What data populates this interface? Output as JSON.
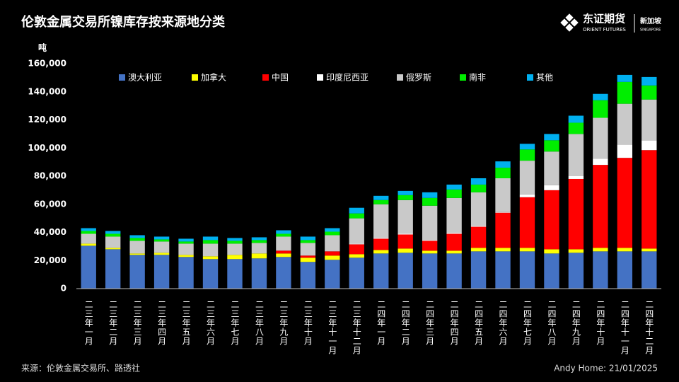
{
  "logo": {
    "name": "东证期货",
    "name_en": "ORIENT FUTURES",
    "region": "新加坡",
    "region_en": "SINGAPORE"
  },
  "chart_data": {
    "type": "stacked_bar",
    "title": "伦敦金属交易所镍库存按来源地分类",
    "y_label": "吨",
    "source": "来源：伦敦金属交易所、路透社",
    "credit": "Andy Home: 21/01/2025",
    "categories": [
      "二三年一月",
      "二三年二月",
      "二三年三月",
      "二三年四月",
      "二三年五月",
      "二三年六月",
      "二三年七月",
      "二三年八月",
      "二三年九月",
      "二三年十月",
      "二三年十一月",
      "二三年十二月",
      "二四年一月",
      "二四年二月",
      "二四年三月",
      "二四年四月",
      "二四年五月",
      "二四年六月",
      "二四年七月",
      "二四年八月",
      "二四年九月",
      "二四年十月",
      "二四年十一月",
      "二四年十二月"
    ],
    "series": [
      {
        "name": "澳大利亚",
        "color": "#4472c4",
        "values": [
          30500,
          28000,
          24000,
          24000,
          22500,
          21000,
          21000,
          21500,
          22500,
          19000,
          20500,
          22000,
          25000,
          25500,
          25000,
          25000,
          26500,
          26500,
          26500,
          25000,
          25500,
          26500,
          26500,
          26500
        ]
      },
      {
        "name": "加拿大",
        "color": "#ffff00",
        "values": [
          1500,
          1000,
          1000,
          1500,
          1500,
          2000,
          3000,
          3500,
          2500,
          3000,
          3000,
          2500,
          2500,
          3000,
          2000,
          2000,
          2500,
          2500,
          2500,
          3000,
          2500,
          2500,
          2500,
          2000
        ]
      },
      {
        "name": "中国",
        "color": "#ff0000",
        "values": [
          0,
          0,
          0,
          0,
          0,
          0,
          0,
          0,
          2000,
          1500,
          3000,
          7000,
          8000,
          10000,
          7000,
          12000,
          15000,
          25000,
          36000,
          42000,
          50000,
          59000,
          64000,
          70000
        ]
      },
      {
        "name": "印度尼西亚",
        "color": "#ffffff",
        "values": [
          0,
          0,
          0,
          0,
          0,
          0,
          0,
          0,
          0,
          0,
          0,
          500,
          500,
          500,
          500,
          500,
          500,
          500,
          2000,
          3500,
          2000,
          4500,
          9500,
          7000
        ]
      },
      {
        "name": "俄罗斯",
        "color": "#c9c9c9",
        "values": [
          7000,
          8000,
          9000,
          8000,
          8000,
          9000,
          8000,
          7500,
          10000,
          9000,
          11500,
          18000,
          24000,
          24000,
          24500,
          25000,
          24000,
          24000,
          24000,
          24000,
          30000,
          29000,
          29000,
          29000
        ]
      },
      {
        "name": "南非",
        "color": "#00ee00",
        "values": [
          2000,
          2000,
          2000,
          1500,
          1500,
          2500,
          2000,
          2000,
          2000,
          2000,
          2500,
          3500,
          3000,
          3500,
          5500,
          6000,
          5500,
          7500,
          8000,
          8000,
          8000,
          12500,
          15500,
          10000
        ]
      },
      {
        "name": "其他",
        "color": "#00b0f0",
        "values": [
          2000,
          2000,
          2000,
          2000,
          2000,
          2500,
          2000,
          2000,
          2500,
          2500,
          2500,
          4000,
          3000,
          3000,
          4000,
          3500,
          4500,
          4500,
          4000,
          4500,
          5000,
          4500,
          5000,
          6000
        ]
      }
    ],
    "ylim": [
      0,
      160000
    ],
    "yticks": [
      0,
      {
        "value": 20000,
        "label": "20,000"
      },
      {
        "value": 40000,
        "label": "40,000"
      },
      {
        "value": 60000,
        "label": "60,000"
      },
      {
        "value": 80000,
        "label": "80,000"
      },
      {
        "value": 100000,
        "label": "100,000"
      },
      {
        "value": 120000,
        "label": "120,000"
      },
      {
        "value": 140000,
        "label": "140,000"
      },
      {
        "value": 160000,
        "label": "160,000"
      }
    ],
    "grid": false,
    "legend": "top"
  }
}
